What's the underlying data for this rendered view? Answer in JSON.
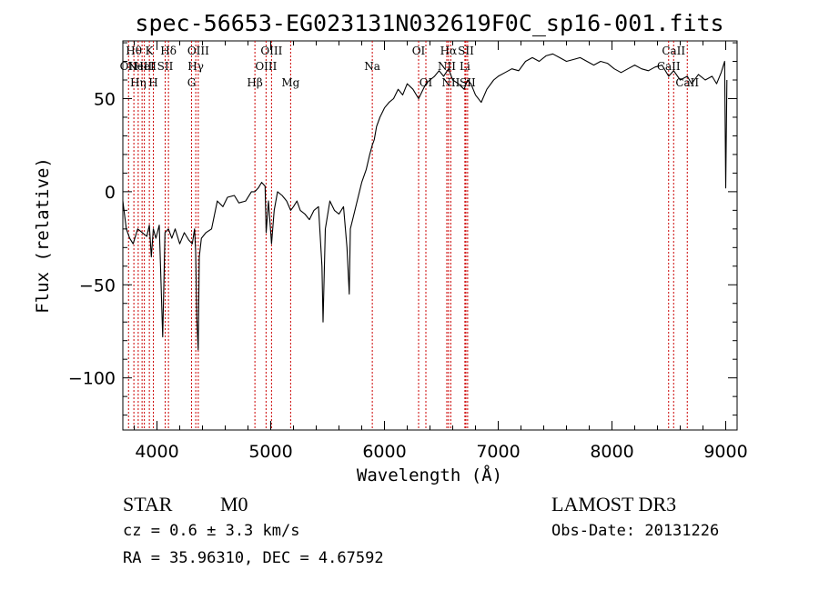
{
  "chart_data": {
    "type": "line",
    "title": "spec-56653-EG023131N032619F0C_sp16-001.fits",
    "xlabel": "Wavelength (Å)",
    "ylabel": "Flux (relative)",
    "xlim": [
      3700,
      9100
    ],
    "ylim": [
      -128,
      81
    ],
    "xticks": [
      4000,
      5000,
      6000,
      7000,
      8000,
      9000
    ],
    "yticks": [
      -100,
      -50,
      0,
      50
    ],
    "series": [
      {
        "color": "#000000",
        "x": [
          3700,
          3730,
          3760,
          3790,
          3830,
          3870,
          3910,
          3933,
          3950,
          3968,
          3990,
          4020,
          4050,
          4070,
          4101,
          4130,
          4160,
          4200,
          4240,
          4280,
          4310,
          4330,
          4340,
          4350,
          4362,
          4372,
          4390,
          4430,
          4480,
          4530,
          4580,
          4620,
          4680,
          4720,
          4780,
          4830,
          4861,
          4890,
          4920,
          4950,
          4960,
          4980,
          5007,
          5030,
          5060,
          5100,
          5140,
          5175,
          5200,
          5230,
          5260,
          5300,
          5340,
          5380,
          5420,
          5450,
          5460,
          5480,
          5520,
          5560,
          5600,
          5640,
          5670,
          5690,
          5700,
          5720,
          5760,
          5800,
          5840,
          5870,
          5893,
          5910,
          5930,
          5960,
          6000,
          6040,
          6080,
          6120,
          6160,
          6200,
          6250,
          6300,
          6340,
          6364,
          6400,
          6440,
          6480,
          6520,
          6563,
          6600,
          6650,
          6700,
          6731,
          6760,
          6800,
          6850,
          6900,
          6960,
          7000,
          7060,
          7120,
          7180,
          7240,
          7300,
          7360,
          7420,
          7480,
          7540,
          7600,
          7660,
          7720,
          7780,
          7840,
          7900,
          7960,
          8020,
          8080,
          8140,
          8200,
          8260,
          8320,
          8380,
          8440,
          8498,
          8542,
          8600,
          8662,
          8700,
          8760,
          8820,
          8880,
          8920,
          8960,
          8990,
          9000,
          9010
        ],
        "y": [
          -5,
          -20,
          -25,
          -28,
          -20,
          -22,
          -24,
          -18,
          -35,
          -20,
          -25,
          -18,
          -78,
          -22,
          -20,
          -25,
          -20,
          -28,
          -22,
          -26,
          -28,
          -20,
          -32,
          -68,
          -85,
          -35,
          -25,
          -22,
          -20,
          -5,
          -8,
          -3,
          -2,
          -6,
          -5,
          0,
          0,
          2,
          5,
          3,
          -22,
          -5,
          -28,
          -10,
          0,
          -2,
          -5,
          -10,
          -8,
          -5,
          -10,
          -12,
          -15,
          -10,
          -8,
          -40,
          -70,
          -20,
          -5,
          -10,
          -12,
          -8,
          -30,
          -55,
          -20,
          -15,
          -5,
          5,
          12,
          20,
          25,
          28,
          35,
          40,
          45,
          48,
          50,
          55,
          52,
          58,
          55,
          50,
          55,
          58,
          60,
          62,
          65,
          62,
          66,
          60,
          58,
          55,
          60,
          58,
          52,
          48,
          55,
          60,
          62,
          64,
          66,
          65,
          70,
          72,
          70,
          73,
          74,
          72,
          70,
          71,
          72,
          70,
          68,
          70,
          69,
          66,
          64,
          66,
          68,
          66,
          65,
          67,
          68,
          62,
          65,
          60,
          62,
          58,
          63,
          60,
          62,
          58,
          64,
          70,
          2,
          60
        ]
      }
    ],
    "lines": [
      {
        "x": 3750,
        "label": "OII",
        "row": 1
      },
      {
        "x": 3797,
        "label": "Hθ",
        "row": 0
      },
      {
        "x": 3835,
        "label": "Hη",
        "row": 2
      },
      {
        "x": 3869,
        "label": "NeIII",
        "row": 1
      },
      {
        "x": 3933,
        "label": "K",
        "row": 0
      },
      {
        "x": 3968,
        "label": "H",
        "row": 2
      },
      {
        "x": 3889,
        "label": "HeI",
        "row": 1
      },
      {
        "x": 4072,
        "label": "SII",
        "row": 1
      },
      {
        "x": 4101,
        "label": "Hδ",
        "row": 0
      },
      {
        "x": 4304,
        "label": "G",
        "row": 2
      },
      {
        "x": 4341,
        "label": "Hγ",
        "row": 1
      },
      {
        "x": 4363,
        "label": "OIII",
        "row": 0
      },
      {
        "x": 4861,
        "label": "Hβ",
        "row": 2
      },
      {
        "x": 4959,
        "label": "OIII",
        "row": 1
      },
      {
        "x": 5007,
        "label": "OIII",
        "row": 0
      },
      {
        "x": 5175,
        "label": "Mg",
        "row": 2
      },
      {
        "x": 5893,
        "label": "Na",
        "row": 1
      },
      {
        "x": 6300,
        "label": "OI",
        "row": 0
      },
      {
        "x": 6364,
        "label": "OI",
        "row": 2
      },
      {
        "x": 6548,
        "label": "NII",
        "row": 1
      },
      {
        "x": 6563,
        "label": "Hα",
        "row": 0
      },
      {
        "x": 6583,
        "label": "NII",
        "row": 2
      },
      {
        "x": 6707,
        "label": "Li",
        "row": 1
      },
      {
        "x": 6716,
        "label": "SII",
        "row": 0
      },
      {
        "x": 6731,
        "label": "SII",
        "row": 2
      },
      {
        "x": 8498,
        "label": "CaII",
        "row": 1
      },
      {
        "x": 8542,
        "label": "CaII",
        "row": 0
      },
      {
        "x": 8662,
        "label": "CaII",
        "row": 2
      }
    ]
  },
  "footer": {
    "object_class": "STAR",
    "subclass": "M0",
    "survey": "LAMOST DR3",
    "cz": "cz = 0.6 ± 3.3 km/s",
    "obs_date": "Obs-Date: 20131226",
    "coords": "RA =  35.96310, DEC =   4.67592"
  }
}
